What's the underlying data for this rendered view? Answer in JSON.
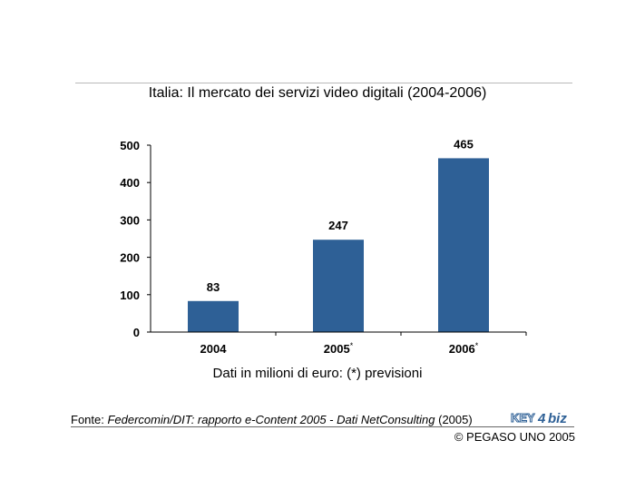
{
  "chart_data": {
    "type": "bar",
    "title": "Italia: Il mercato dei servizi video digitali (2004-2006)",
    "xlabel": "Dati in milioni di euro: (*) previsioni",
    "ylabel": "",
    "categories": [
      "2004",
      "2005*",
      "2006*"
    ],
    "values": [
      83,
      247,
      465
    ],
    "ylim": [
      0,
      500
    ],
    "yticks": [
      0,
      100,
      200,
      300,
      400,
      500
    ],
    "grid": false,
    "legend": "none",
    "bar_color": "#2e6096"
  },
  "source": {
    "prefix": "Fonte: ",
    "italic": "Federcomin/DIT: rapporto e-Content 2005 - Dati NetConsulting",
    "suffix": " (2005)"
  },
  "copyright": "© PEGASO UNO 2005",
  "logo": {
    "left": "KEY",
    "num": "4",
    "right": "biz"
  }
}
